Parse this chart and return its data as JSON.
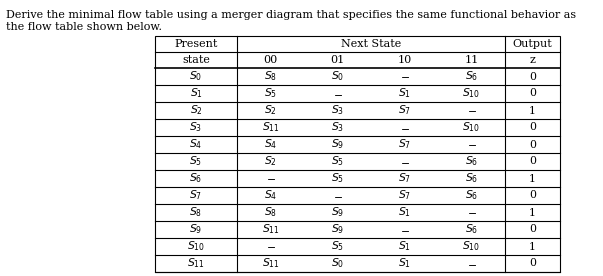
{
  "title_line1": "Derive the minimal flow table using a merger diagram that specifies the same functional behavior as",
  "title_line2": "the flow table shown below.",
  "rows": [
    [
      "$S_0$",
      "$S_8$",
      "$S_0$",
      "$-$",
      "$S_6$",
      "0"
    ],
    [
      "$S_1$",
      "$S_5$",
      "$-$",
      "$S_1$",
      "$S_{10}$",
      "0"
    ],
    [
      "$S_2$",
      "$S_2$",
      "$S_3$",
      "$S_7$",
      "$-$",
      "1"
    ],
    [
      "$S_3$",
      "$S_{11}$",
      "$S_3$",
      "$-$",
      "$S_{10}$",
      "0"
    ],
    [
      "$S_4$",
      "$S_4$",
      "$S_9$",
      "$S_7$",
      "$-$",
      "0"
    ],
    [
      "$S_5$",
      "$S_2$",
      "$S_5$",
      "$-$",
      "$S_6$",
      "0"
    ],
    [
      "$S_6$",
      "$-$",
      "$S_5$",
      "$S_7$",
      "$S_6$",
      "1"
    ],
    [
      "$S_7$",
      "$S_4$",
      "$-$",
      "$S_7$",
      "$S_6$",
      "0"
    ],
    [
      "$S_8$",
      "$S_8$",
      "$S_9$",
      "$S_1$",
      "$-$",
      "1"
    ],
    [
      "$S_9$",
      "$S_{11}$",
      "$S_9$",
      "$-$",
      "$S_6$",
      "0"
    ],
    [
      "$S_{10}$",
      "$-$",
      "$S_5$",
      "$S_1$",
      "$S_{10}$",
      "1"
    ],
    [
      "$S_{11}$",
      "$S_{11}$",
      "$S_0$",
      "$S_1$",
      "$-$",
      "0"
    ]
  ],
  "figsize": [
    6.03,
    2.76
  ],
  "dpi": 100,
  "title_fontsize": 8.0,
  "table_fontsize": 7.8,
  "header_fontsize": 8.0
}
